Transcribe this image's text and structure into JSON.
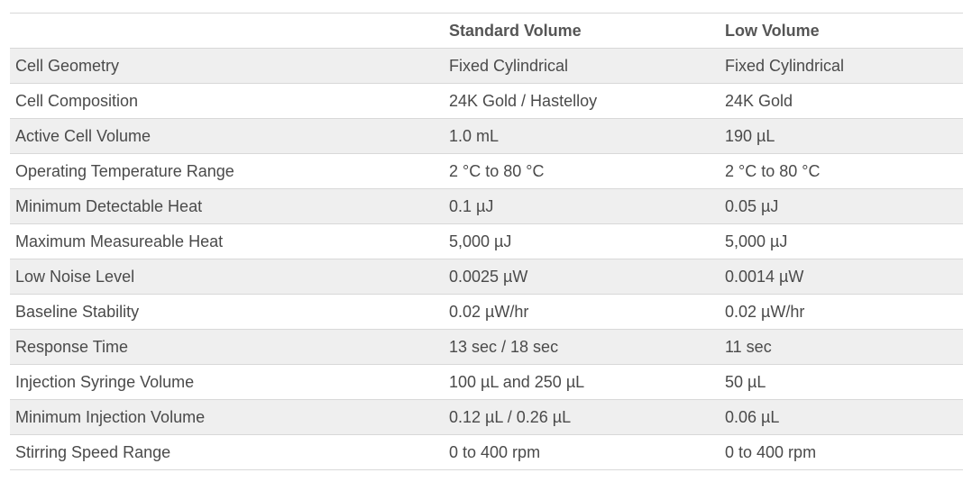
{
  "table": {
    "headers": [
      "",
      "Standard Volume",
      "Low Volume"
    ],
    "rows": [
      [
        "Cell Geometry",
        "Fixed Cylindrical",
        "Fixed Cylindrical"
      ],
      [
        "Cell Composition",
        "24K Gold / Hastelloy",
        "24K Gold"
      ],
      [
        "Active Cell Volume",
        "1.0 mL",
        "190 µL"
      ],
      [
        "Operating Temperature Range",
        "2 °C to 80 °C",
        "2 °C to 80 °C"
      ],
      [
        "Minimum Detectable Heat",
        "0.1 µJ",
        "0.05 µJ"
      ],
      [
        "Maximum Measureable Heat",
        "5,000 µJ",
        "5,000 µJ"
      ],
      [
        "Low Noise Level",
        "0.0025 µW",
        "0.0014 µW"
      ],
      [
        "Baseline Stability",
        "0.02 µW/hr",
        "0.02 µW/hr"
      ],
      [
        "Response Time",
        "13 sec / 18 sec",
        "11 sec"
      ],
      [
        "Injection Syringe Volume",
        "100 µL and 250 µL",
        "50 µL"
      ],
      [
        "Minimum Injection Volume",
        "0.12 µL / 0.26 µL",
        "0.06 µL"
      ],
      [
        "Stirring Speed Range",
        "0 to 400 rpm",
        "0 to 400 rpm"
      ]
    ]
  },
  "colors": {
    "stripe": "#efefef",
    "border": "#d8d8d8",
    "text": "#4a4a4a"
  }
}
